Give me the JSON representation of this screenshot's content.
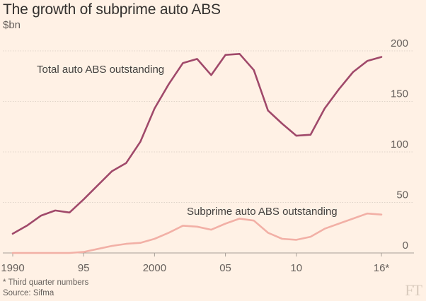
{
  "title": "The growth of subprime auto ABS",
  "subtitle": "$bn",
  "footnote": "* Third quarter numbers",
  "source": "Source: Sifma",
  "logo": "FT",
  "colors": {
    "background": "#fff1e5",
    "total_line": "#a0496a",
    "subprime_line": "#f2b0a6",
    "grid": "#e0d4c9",
    "axis_text": "#66605c"
  },
  "chart_data": {
    "type": "line",
    "x_ticks": [
      1990,
      1995,
      2000,
      2005,
      2010,
      2016
    ],
    "x_tick_labels": [
      "1990",
      "95",
      "2000",
      "05",
      "10",
      "16*"
    ],
    "y_ticks": [
      0,
      50,
      100,
      150,
      200
    ],
    "y_tick_labels": [
      "0",
      "50",
      "100",
      "150",
      "200"
    ],
    "ylim": [
      0,
      200
    ],
    "xlim": [
      1990,
      2016
    ],
    "grid": true,
    "series": [
      {
        "name": "Total auto ABS outstanding",
        "x": [
          1990,
          1991,
          1992,
          1993,
          1994,
          1995,
          1996,
          1997,
          1998,
          1999,
          2000,
          2001,
          2002,
          2003,
          2004,
          2005,
          2006,
          2007,
          2008,
          2009,
          2010,
          2011,
          2012,
          2013,
          2014,
          2015,
          2016
        ],
        "values": [
          19,
          27,
          37,
          42,
          40,
          53,
          67,
          81,
          89,
          110,
          143,
          167,
          188,
          192,
          176,
          196,
          197,
          181,
          141,
          128,
          116,
          117,
          143,
          162,
          179,
          190,
          194
        ]
      },
      {
        "name": "Subprime auto ABS outstanding",
        "x": [
          1990,
          1991,
          1992,
          1993,
          1994,
          1995,
          1996,
          1997,
          1998,
          1999,
          2000,
          2001,
          2002,
          2003,
          2004,
          2005,
          2006,
          2007,
          2008,
          2009,
          2010,
          2011,
          2012,
          2013,
          2014,
          2015,
          2016
        ],
        "values": [
          0,
          0,
          0,
          0,
          0,
          1,
          4,
          7,
          9,
          10,
          14,
          20,
          27,
          26,
          23,
          29,
          34,
          32,
          20,
          14,
          13,
          16,
          24,
          29,
          34,
          39,
          38
        ]
      }
    ]
  }
}
